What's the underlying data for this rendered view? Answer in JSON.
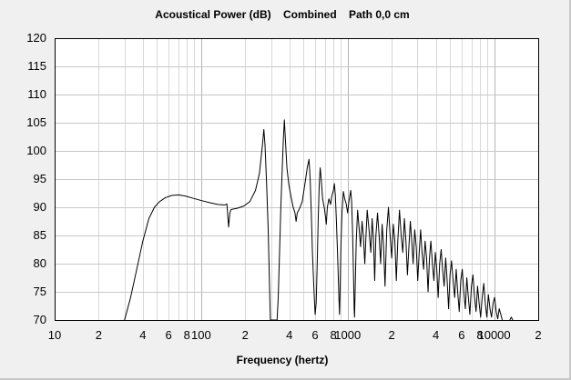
{
  "chart_data": {
    "type": "line",
    "title": "Acoustical Power (dB)    Combined    Path 0,0 cm",
    "xlabel": "Frequency (hertz)",
    "ylabel": "",
    "x_scale": "log",
    "xlim": [
      10,
      20000
    ],
    "ylim": [
      70,
      120
    ],
    "grid": true,
    "y_ticks": [
      "70",
      "75",
      "80",
      "85",
      "90",
      "95",
      "100",
      "105",
      "110",
      "115",
      "120"
    ],
    "x_tick_labels": [
      {
        "x": 10,
        "label": "10"
      },
      {
        "x": 20,
        "label": "2"
      },
      {
        "x": 40,
        "label": "4"
      },
      {
        "x": 60,
        "label": "6"
      },
      {
        "x": 80,
        "label": "8"
      },
      {
        "x": 100,
        "label": "100"
      },
      {
        "x": 200,
        "label": "2"
      },
      {
        "x": 400,
        "label": "4"
      },
      {
        "x": 600,
        "label": "6"
      },
      {
        "x": 800,
        "label": "8"
      },
      {
        "x": 1000,
        "label": "1000"
      },
      {
        "x": 2000,
        "label": "2"
      },
      {
        "x": 4000,
        "label": "4"
      },
      {
        "x": 6000,
        "label": "6"
      },
      {
        "x": 8000,
        "label": "8"
      },
      {
        "x": 10000,
        "label": "10000"
      },
      {
        "x": 20000,
        "label": "2"
      }
    ],
    "series": [
      {
        "color": "#000000",
        "points": [
          [
            30,
            70
          ],
          [
            33,
            74
          ],
          [
            36,
            78.5
          ],
          [
            40,
            84
          ],
          [
            44,
            88
          ],
          [
            48,
            90
          ],
          [
            52,
            91
          ],
          [
            57,
            91.7
          ],
          [
            63,
            92.1
          ],
          [
            70,
            92.2
          ],
          [
            78,
            92.0
          ],
          [
            88,
            91.6
          ],
          [
            100,
            91.2
          ],
          [
            115,
            90.8
          ],
          [
            130,
            90.5
          ],
          [
            145,
            90.4
          ],
          [
            150,
            90.6
          ],
          [
            152,
            88.5
          ],
          [
            154,
            86.5
          ],
          [
            157,
            89
          ],
          [
            160,
            89.6
          ],
          [
            175,
            89.8
          ],
          [
            195,
            90.2
          ],
          [
            215,
            91
          ],
          [
            235,
            93
          ],
          [
            250,
            96
          ],
          [
            262,
            101
          ],
          [
            268,
            103.8
          ],
          [
            273,
            101
          ],
          [
            280,
            94
          ],
          [
            287,
            86
          ],
          [
            293,
            76
          ],
          [
            297,
            70
          ],
          [
            330,
            70
          ],
          [
            336,
            74
          ],
          [
            343,
            82
          ],
          [
            350,
            90
          ],
          [
            358,
            97
          ],
          [
            364,
            102
          ],
          [
            370,
            105.5
          ],
          [
            376,
            102
          ],
          [
            385,
            97
          ],
          [
            397,
            94
          ],
          [
            410,
            92
          ],
          [
            425,
            90
          ],
          [
            437,
            89
          ],
          [
            445,
            87.5
          ],
          [
            453,
            89
          ],
          [
            470,
            89.8
          ],
          [
            490,
            91
          ],
          [
            510,
            94
          ],
          [
            530,
            97
          ],
          [
            545,
            98.5
          ],
          [
            555,
            95
          ],
          [
            565,
            89
          ],
          [
            575,
            82
          ],
          [
            590,
            75
          ],
          [
            600,
            71
          ],
          [
            610,
            73
          ],
          [
            620,
            80
          ],
          [
            630,
            88
          ],
          [
            640,
            94
          ],
          [
            650,
            97
          ],
          [
            660,
            95
          ],
          [
            675,
            91.5
          ],
          [
            692,
            90
          ],
          [
            705,
            88.5
          ],
          [
            715,
            87
          ],
          [
            727,
            90
          ],
          [
            745,
            91.5
          ],
          [
            765,
            90.5
          ],
          [
            780,
            92
          ],
          [
            800,
            93
          ],
          [
            812,
            94.2
          ],
          [
            825,
            92
          ],
          [
            840,
            87
          ],
          [
            858,
            80
          ],
          [
            872,
            74
          ],
          [
            880,
            71
          ],
          [
            888,
            75
          ],
          [
            900,
            83
          ],
          [
            915,
            89
          ],
          [
            935,
            92.8
          ],
          [
            955,
            91.5
          ],
          [
            980,
            90.5
          ],
          [
            1000,
            89
          ],
          [
            1020,
            91
          ],
          [
            1050,
            93
          ],
          [
            1065,
            91
          ],
          [
            1080,
            86
          ],
          [
            1095,
            79
          ],
          [
            1108,
            72
          ],
          [
            1115,
            70.5
          ],
          [
            1125,
            75
          ],
          [
            1145,
            84
          ],
          [
            1170,
            89.5
          ],
          [
            1200,
            86
          ],
          [
            1225,
            83
          ],
          [
            1255,
            87.5
          ],
          [
            1280,
            85
          ],
          [
            1310,
            80
          ],
          [
            1335,
            85
          ],
          [
            1360,
            89.5
          ],
          [
            1400,
            86
          ],
          [
            1440,
            82
          ],
          [
            1470,
            88
          ],
          [
            1500,
            84.5
          ],
          [
            1530,
            77
          ],
          [
            1560,
            85
          ],
          [
            1600,
            89
          ],
          [
            1640,
            85
          ],
          [
            1680,
            80
          ],
          [
            1720,
            87
          ],
          [
            1760,
            83
          ],
          [
            1800,
            76
          ],
          [
            1850,
            86
          ],
          [
            1900,
            90
          ],
          [
            1950,
            85
          ],
          [
            2000,
            81
          ],
          [
            2050,
            87
          ],
          [
            2100,
            84
          ],
          [
            2150,
            77
          ],
          [
            2200,
            84
          ],
          [
            2260,
            89.5
          ],
          [
            2320,
            85
          ],
          [
            2380,
            82
          ],
          [
            2440,
            88
          ],
          [
            2500,
            84
          ],
          [
            2560,
            78
          ],
          [
            2620,
            83
          ],
          [
            2680,
            87.5
          ],
          [
            2740,
            84
          ],
          [
            2800,
            80
          ],
          [
            2870,
            86
          ],
          [
            2940,
            83
          ],
          [
            3010,
            77
          ],
          [
            3080,
            82
          ],
          [
            3150,
            86
          ],
          [
            3220,
            82
          ],
          [
            3300,
            79
          ],
          [
            3380,
            84
          ],
          [
            3460,
            81
          ],
          [
            3540,
            75
          ],
          [
            3620,
            81
          ],
          [
            3700,
            84
          ],
          [
            3790,
            80
          ],
          [
            3880,
            77
          ],
          [
            3970,
            82
          ],
          [
            4060,
            79
          ],
          [
            4150,
            74
          ],
          [
            4250,
            80
          ],
          [
            4350,
            82.5
          ],
          [
            4450,
            79
          ],
          [
            4560,
            76
          ],
          [
            4670,
            81
          ],
          [
            4780,
            77
          ],
          [
            4890,
            72
          ],
          [
            5000,
            78
          ],
          [
            5120,
            80.5
          ],
          [
            5250,
            77
          ],
          [
            5380,
            74
          ],
          [
            5510,
            79
          ],
          [
            5640,
            75
          ],
          [
            5780,
            71.5
          ],
          [
            5920,
            77
          ],
          [
            6060,
            79
          ],
          [
            6210,
            75
          ],
          [
            6360,
            72
          ],
          [
            6510,
            77.5
          ],
          [
            6670,
            74
          ],
          [
            6830,
            71
          ],
          [
            7000,
            76
          ],
          [
            7170,
            78
          ],
          [
            7350,
            74
          ],
          [
            7530,
            71.5
          ],
          [
            7710,
            76
          ],
          [
            7900,
            73
          ],
          [
            8090,
            70.5
          ],
          [
            8290,
            74
          ],
          [
            8500,
            76.5
          ],
          [
            8700,
            73
          ],
          [
            8920,
            70.5
          ],
          [
            9140,
            74.5
          ],
          [
            9370,
            72
          ],
          [
            9600,
            70.5
          ],
          [
            9840,
            73
          ],
          [
            10080,
            74
          ],
          [
            10330,
            71.5
          ],
          [
            10580,
            70.2
          ],
          [
            10840,
            72
          ],
          [
            11100,
            71
          ],
          [
            11370,
            70
          ]
        ]
      },
      {
        "color": "#000000",
        "points": [
          [
            12800,
            70
          ],
          [
            13100,
            70.5
          ],
          [
            13400,
            70
          ]
        ]
      }
    ]
  }
}
